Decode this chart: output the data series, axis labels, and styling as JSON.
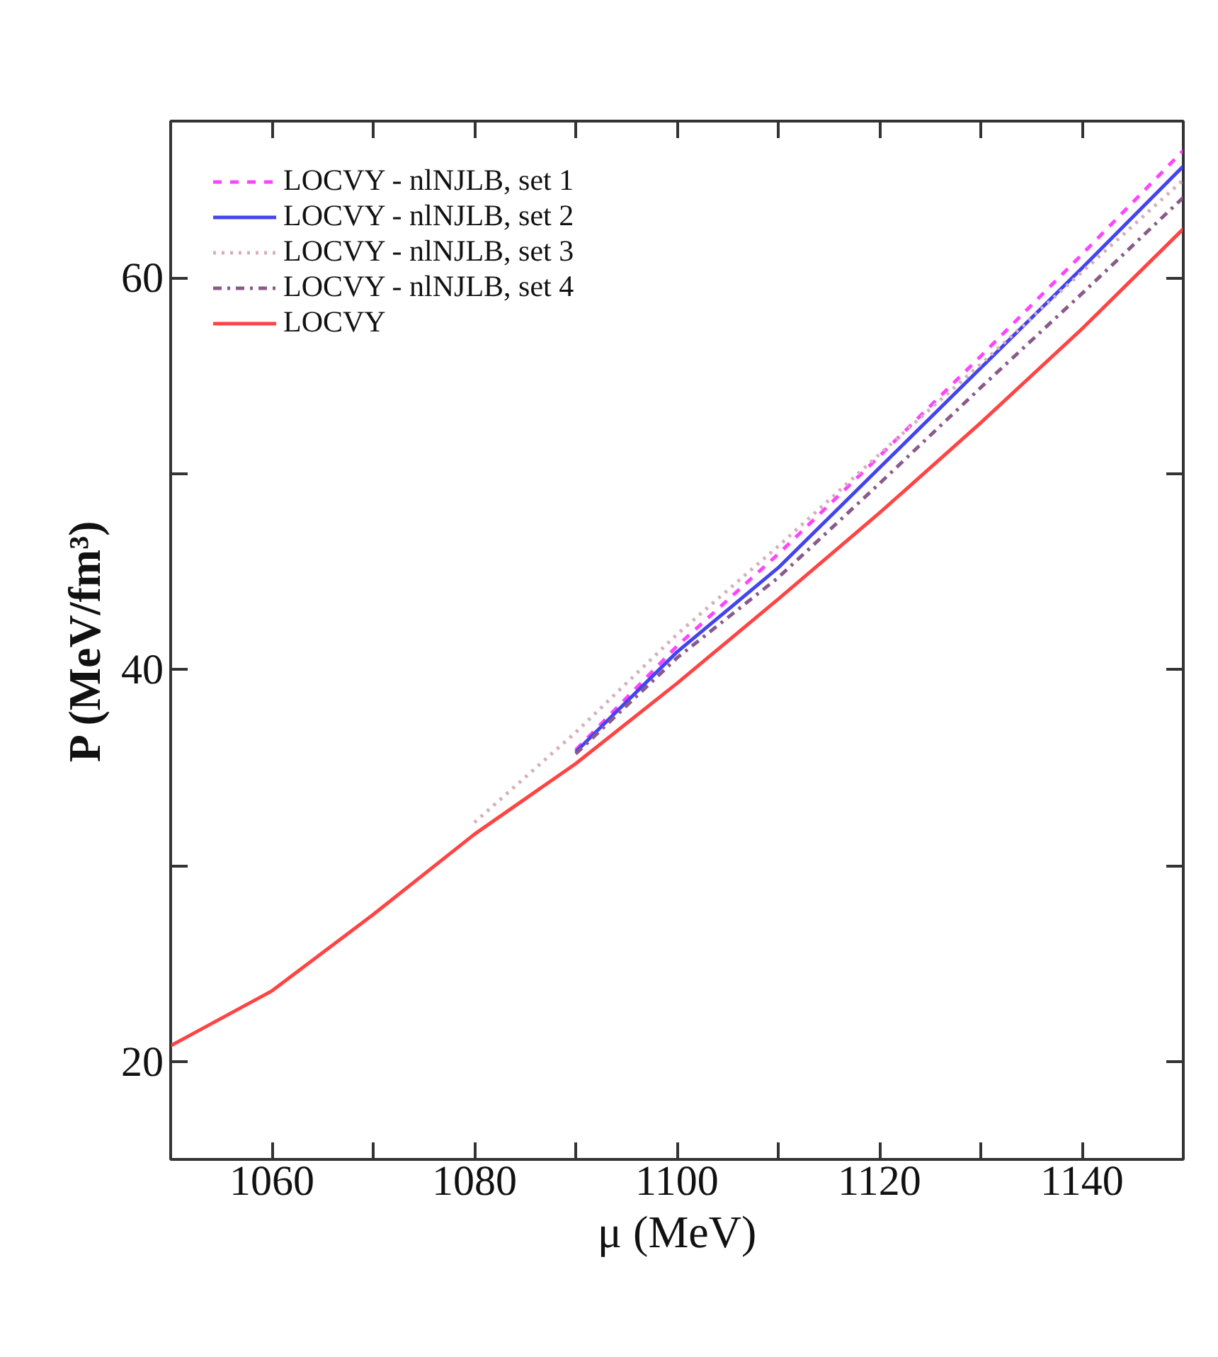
{
  "chart_data": {
    "type": "line",
    "xlabel": "μ (MeV)",
    "ylabel": "P (MeV/fm³)",
    "x": [
      1050,
      1060,
      1070,
      1080,
      1090,
      1100,
      1110,
      1120,
      1130,
      1140,
      1150
    ],
    "xlim": [
      1050,
      1150
    ],
    "ylim": [
      15,
      68
    ],
    "xticks": [
      1060,
      {
        "value": 1070,
        "label": null
      },
      1080,
      {
        "value": 1090,
        "label": null
      },
      1100,
      {
        "value": 1110,
        "label": null
      },
      1120,
      {
        "value": 1130,
        "label": null
      },
      1140
    ],
    "yticks": [
      20,
      {
        "value": 30,
        "label": null
      },
      40,
      {
        "value": 50,
        "label": null
      },
      60
    ],
    "grid": false,
    "legend": "top left",
    "marker": "none",
    "series": [
      {
        "name": "LOCVY - nlNJLB, set 1",
        "color": "#ff44ff",
        "line_style": "dashed",
        "x": [
          1090,
          1100,
          1110,
          1120,
          1130,
          1140,
          1150
        ],
        "values": [
          35.9,
          41.2,
          45.9,
          50.9,
          56.0,
          61.2,
          66.5
        ]
      },
      {
        "name": "LOCVY - nlNJLB, set 2",
        "color": "#4444ee",
        "line_style": "solid",
        "x": [
          1090,
          1100,
          1110,
          1120,
          1130,
          1140,
          1150
        ],
        "values": [
          35.8,
          40.9,
          45.2,
          50.3,
          55.4,
          60.5,
          65.7
        ]
      },
      {
        "name": "LOCVY - nlNJLB, set 3",
        "color": "#d4b0bc",
        "line_style": "dotted",
        "x": [
          1080,
          1090,
          1100,
          1110,
          1120,
          1130,
          1140,
          1150
        ],
        "values": [
          32.2,
          36.8,
          41.8,
          46.3,
          51.0,
          55.6,
          60.3,
          65.0
        ]
      },
      {
        "name": "LOCVY - nlNJLB, set 4",
        "color": "#8a5a8a",
        "line_style": "dashdot",
        "x": [
          1090,
          1100,
          1110,
          1120,
          1130,
          1140,
          1150
        ],
        "values": [
          35.7,
          40.6,
          44.7,
          49.5,
          54.4,
          59.2,
          64.1
        ]
      },
      {
        "name": "LOCVY",
        "color": "#ff4444",
        "line_style": "solid",
        "values": [
          20.8,
          23.6,
          27.5,
          31.6,
          35.2,
          39.3,
          43.6,
          48.0,
          52.6,
          57.4,
          62.5
        ]
      }
    ]
  }
}
